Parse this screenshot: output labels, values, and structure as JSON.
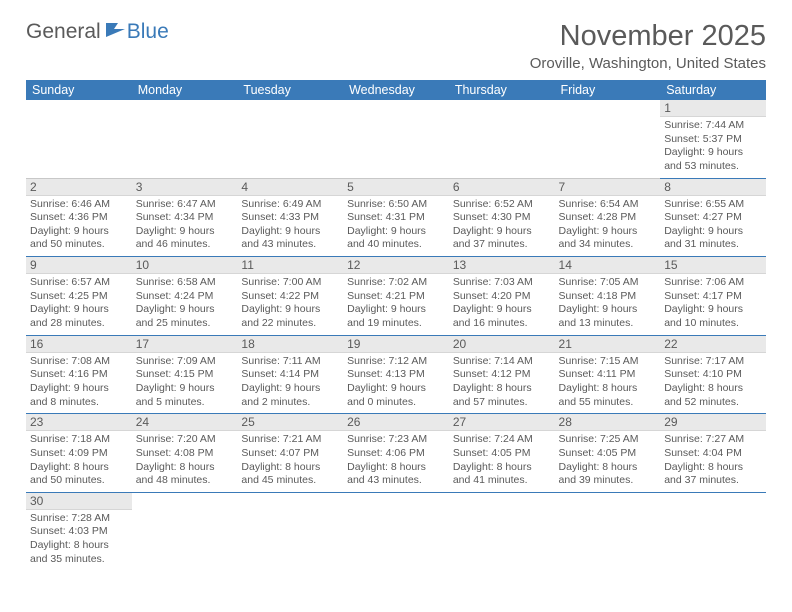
{
  "logo": {
    "general": "General",
    "blue": "Blue"
  },
  "title": "November 2025",
  "location": "Oroville, Washington, United States",
  "colors": {
    "header_bg": "#3a7ab8",
    "header_text": "#ffffff",
    "daynum_bg": "#e9e9e9",
    "text": "#5a5a5a",
    "row_border": "#3a7ab8",
    "light_border": "#c8c8c8"
  },
  "weekdays": [
    "Sunday",
    "Monday",
    "Tuesday",
    "Wednesday",
    "Thursday",
    "Friday",
    "Saturday"
  ],
  "weeks": [
    [
      null,
      null,
      null,
      null,
      null,
      null,
      {
        "n": "1",
        "sr": "7:44 AM",
        "ss": "5:37 PM",
        "dl": "9 hours and 53 minutes."
      }
    ],
    [
      {
        "n": "2",
        "sr": "6:46 AM",
        "ss": "4:36 PM",
        "dl": "9 hours and 50 minutes."
      },
      {
        "n": "3",
        "sr": "6:47 AM",
        "ss": "4:34 PM",
        "dl": "9 hours and 46 minutes."
      },
      {
        "n": "4",
        "sr": "6:49 AM",
        "ss": "4:33 PM",
        "dl": "9 hours and 43 minutes."
      },
      {
        "n": "5",
        "sr": "6:50 AM",
        "ss": "4:31 PM",
        "dl": "9 hours and 40 minutes."
      },
      {
        "n": "6",
        "sr": "6:52 AM",
        "ss": "4:30 PM",
        "dl": "9 hours and 37 minutes."
      },
      {
        "n": "7",
        "sr": "6:54 AM",
        "ss": "4:28 PM",
        "dl": "9 hours and 34 minutes."
      },
      {
        "n": "8",
        "sr": "6:55 AM",
        "ss": "4:27 PM",
        "dl": "9 hours and 31 minutes."
      }
    ],
    [
      {
        "n": "9",
        "sr": "6:57 AM",
        "ss": "4:25 PM",
        "dl": "9 hours and 28 minutes."
      },
      {
        "n": "10",
        "sr": "6:58 AM",
        "ss": "4:24 PM",
        "dl": "9 hours and 25 minutes."
      },
      {
        "n": "11",
        "sr": "7:00 AM",
        "ss": "4:22 PM",
        "dl": "9 hours and 22 minutes."
      },
      {
        "n": "12",
        "sr": "7:02 AM",
        "ss": "4:21 PM",
        "dl": "9 hours and 19 minutes."
      },
      {
        "n": "13",
        "sr": "7:03 AM",
        "ss": "4:20 PM",
        "dl": "9 hours and 16 minutes."
      },
      {
        "n": "14",
        "sr": "7:05 AM",
        "ss": "4:18 PM",
        "dl": "9 hours and 13 minutes."
      },
      {
        "n": "15",
        "sr": "7:06 AM",
        "ss": "4:17 PM",
        "dl": "9 hours and 10 minutes."
      }
    ],
    [
      {
        "n": "16",
        "sr": "7:08 AM",
        "ss": "4:16 PM",
        "dl": "9 hours and 8 minutes."
      },
      {
        "n": "17",
        "sr": "7:09 AM",
        "ss": "4:15 PM",
        "dl": "9 hours and 5 minutes."
      },
      {
        "n": "18",
        "sr": "7:11 AM",
        "ss": "4:14 PM",
        "dl": "9 hours and 2 minutes."
      },
      {
        "n": "19",
        "sr": "7:12 AM",
        "ss": "4:13 PM",
        "dl": "9 hours and 0 minutes."
      },
      {
        "n": "20",
        "sr": "7:14 AM",
        "ss": "4:12 PM",
        "dl": "8 hours and 57 minutes."
      },
      {
        "n": "21",
        "sr": "7:15 AM",
        "ss": "4:11 PM",
        "dl": "8 hours and 55 minutes."
      },
      {
        "n": "22",
        "sr": "7:17 AM",
        "ss": "4:10 PM",
        "dl": "8 hours and 52 minutes."
      }
    ],
    [
      {
        "n": "23",
        "sr": "7:18 AM",
        "ss": "4:09 PM",
        "dl": "8 hours and 50 minutes."
      },
      {
        "n": "24",
        "sr": "7:20 AM",
        "ss": "4:08 PM",
        "dl": "8 hours and 48 minutes."
      },
      {
        "n": "25",
        "sr": "7:21 AM",
        "ss": "4:07 PM",
        "dl": "8 hours and 45 minutes."
      },
      {
        "n": "26",
        "sr": "7:23 AM",
        "ss": "4:06 PM",
        "dl": "8 hours and 43 minutes."
      },
      {
        "n": "27",
        "sr": "7:24 AM",
        "ss": "4:05 PM",
        "dl": "8 hours and 41 minutes."
      },
      {
        "n": "28",
        "sr": "7:25 AM",
        "ss": "4:05 PM",
        "dl": "8 hours and 39 minutes."
      },
      {
        "n": "29",
        "sr": "7:27 AM",
        "ss": "4:04 PM",
        "dl": "8 hours and 37 minutes."
      }
    ],
    [
      {
        "n": "30",
        "sr": "7:28 AM",
        "ss": "4:03 PM",
        "dl": "8 hours and 35 minutes."
      },
      null,
      null,
      null,
      null,
      null,
      null
    ]
  ],
  "labels": {
    "sunrise": "Sunrise: ",
    "sunset": "Sunset: ",
    "daylight": "Daylight: "
  }
}
